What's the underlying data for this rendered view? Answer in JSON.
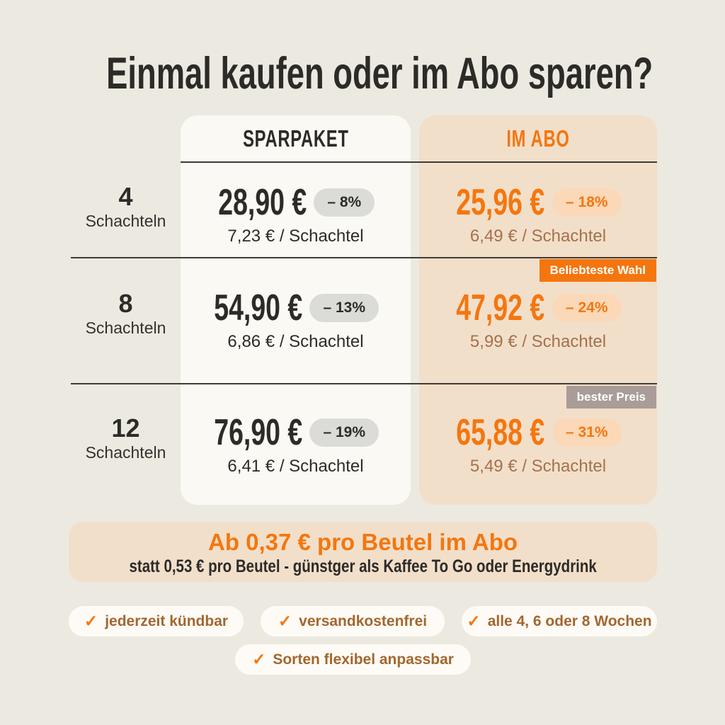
{
  "title": "Einmal kaufen oder im Abo sparen?",
  "table": {
    "col_sparpaket": "SPARPAKET",
    "col_abo": "IM ABO",
    "badge_popular": "Beliebteste Wahl",
    "badge_best": "bester Preis",
    "rows": [
      {
        "qty": "4",
        "unit": "Schachteln",
        "spar": {
          "price": "28,90 €",
          "discount": "– 8%",
          "per_unit": "7,23 € / Schachtel"
        },
        "abo": {
          "price": "25,96 €",
          "discount": "– 18%",
          "per_unit": "6,49 € / Schachtel"
        }
      },
      {
        "qty": "8",
        "unit": "Schachteln",
        "spar": {
          "price": "54,90 €",
          "discount": "– 13%",
          "per_unit": "6,86 € / Schachtel"
        },
        "abo": {
          "price": "47,92 €",
          "discount": "– 24%",
          "per_unit": "5,99 € / Schachtel"
        }
      },
      {
        "qty": "12",
        "unit": "Schachteln",
        "spar": {
          "price": "76,90 €",
          "discount": "– 19%",
          "per_unit": "6,41 € / Schachtel"
        },
        "abo": {
          "price": "65,88 €",
          "discount": "– 31%",
          "per_unit": "5,49 € / Schachtel"
        }
      }
    ]
  },
  "banner": {
    "headline": "Ab 0,37 € pro Beutel im Abo",
    "subline": "statt 0,53 € pro Beutel - günstger als Kaffee To Go oder Energydrink"
  },
  "features": {
    "check": "✓",
    "items": [
      "jederzeit kündbar",
      "versandkostenfrei",
      "alle 4, 6 oder 8 Wochen",
      "Sorten flexibel anpassbar"
    ]
  },
  "colors": {
    "accent_orange": "#F5760E",
    "page_bg": "#ECE9E1",
    "card_white": "#FAF9F4",
    "card_peach": "#F2DFCA",
    "discount_pill_gray": "#DBDBD8",
    "discount_pill_peach": "#FBD8B8",
    "badge_best_bg": "#A99C99",
    "text_dark": "#2C2B28",
    "text_brown": "#A5714B",
    "feature_text_brown": "#A2672F"
  }
}
